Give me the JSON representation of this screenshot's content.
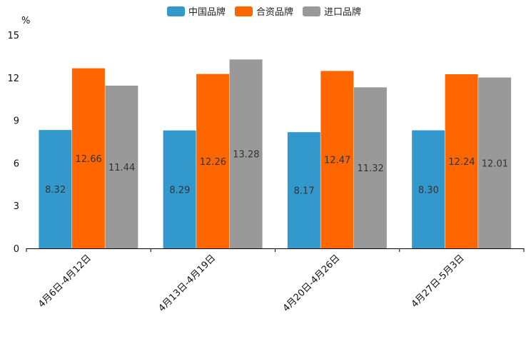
{
  "chart_data": {
    "type": "bar",
    "title": "",
    "unit_label": "%",
    "xlabel": "",
    "ylabel": "%",
    "ylim": [
      0,
      15
    ],
    "yticks": [
      0,
      3,
      6,
      9,
      12,
      15
    ],
    "ytick_labels": [
      "0",
      "3",
      "6",
      "9",
      "12",
      "15"
    ],
    "grid": false,
    "legend_position": "top-center",
    "categories": [
      "4月6日-4月12日",
      "4月13日-4月19日",
      "4月20日-4月26日",
      "4月27日-5月3日"
    ],
    "series": [
      {
        "name": "中国品牌",
        "color": "#3399cc",
        "values": [
          8.32,
          8.29,
          8.17,
          8.3
        ],
        "labels": [
          "8.32",
          "8.29",
          "8.17",
          "8.30"
        ]
      },
      {
        "name": "合资品牌",
        "color": "#ff6600",
        "values": [
          12.66,
          12.26,
          12.47,
          12.24
        ],
        "labels": [
          "12.66",
          "12.26",
          "12.47",
          "12.24"
        ]
      },
      {
        "name": "进口品牌",
        "color": "#999999",
        "values": [
          11.44,
          13.28,
          11.32,
          12.01
        ],
        "labels": [
          "11.44",
          "13.28",
          "11.32",
          "12.01"
        ]
      }
    ]
  }
}
